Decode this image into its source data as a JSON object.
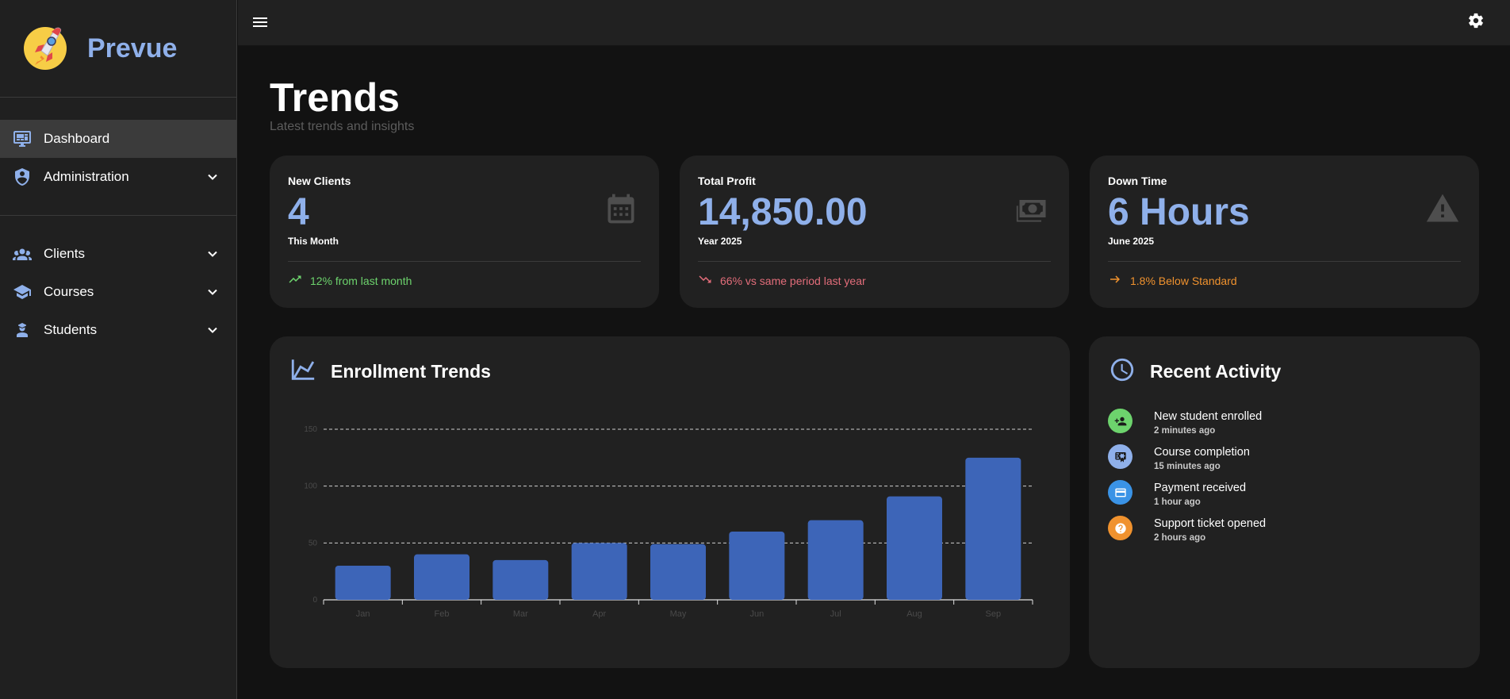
{
  "brand": {
    "name": "Prevue"
  },
  "sidebar": {
    "items": [
      {
        "label": "Dashboard",
        "icon": "monitor-dashboard-icon",
        "active": true,
        "expandable": false
      },
      {
        "label": "Administration",
        "icon": "shield-account-icon",
        "active": false,
        "expandable": true
      },
      {
        "label": "Clients",
        "icon": "account-group-icon",
        "active": false,
        "expandable": true
      },
      {
        "label": "Courses",
        "icon": "school-icon",
        "active": false,
        "expandable": true
      },
      {
        "label": "Students",
        "icon": "student-icon",
        "active": false,
        "expandable": true
      }
    ]
  },
  "topbar": {
    "menu_icon": "hamburger-menu-icon",
    "settings_icon": "gear-icon"
  },
  "page": {
    "title": "Trends",
    "subtitle": "Latest trends and insights"
  },
  "stats": [
    {
      "label": "New Clients",
      "value": "4",
      "sub": "This Month",
      "icon": "calendar-icon",
      "trend_text": "12% from last month",
      "trend_icon": "trending-up-icon",
      "trend_color": "#6dd36d"
    },
    {
      "label": "Total Profit",
      "value": "14,850.00",
      "sub": "Year 2025",
      "icon": "cash-icon",
      "trend_text": "66% vs same period last year",
      "trend_icon": "trending-down-icon",
      "trend_color": "#e26d7a"
    },
    {
      "label": "Down Time",
      "value": "6 Hours",
      "sub": "June 2025",
      "icon": "warning-icon",
      "trend_text": "1.8% Below Standard",
      "trend_icon": "arrow-right-icon",
      "trend_color": "#f0922e"
    }
  ],
  "enrollment": {
    "title": "Enrollment Trends",
    "icon": "line-chart-icon"
  },
  "chart_data": {
    "type": "bar",
    "title": "Enrollment Trends",
    "categories": [
      "Jan",
      "Feb",
      "Mar",
      "Apr",
      "May",
      "Jun",
      "Jul",
      "Aug",
      "Sep"
    ],
    "values": [
      30,
      40,
      35,
      50,
      49,
      60,
      70,
      91,
      125
    ],
    "ylim": [
      0,
      150
    ],
    "yticks": [
      0,
      50,
      100,
      150
    ],
    "grid": true,
    "bar_color": "#3d65b8"
  },
  "activity": {
    "title": "Recent Activity",
    "icon": "clock-icon",
    "items": [
      {
        "title": "New student enrolled",
        "time": "2 minutes ago",
        "icon": "account-plus-icon",
        "color": "#6dd36d"
      },
      {
        "title": "Course completion",
        "time": "15 minutes ago",
        "icon": "certificate-icon",
        "color": "#8fb0ea"
      },
      {
        "title": "Payment received",
        "time": "1 hour ago",
        "icon": "credit-card-icon",
        "color": "#3a93e6"
      },
      {
        "title": "Support ticket opened",
        "time": "2 hours ago",
        "icon": "help-circle-icon",
        "color": "#f0922e"
      }
    ]
  }
}
